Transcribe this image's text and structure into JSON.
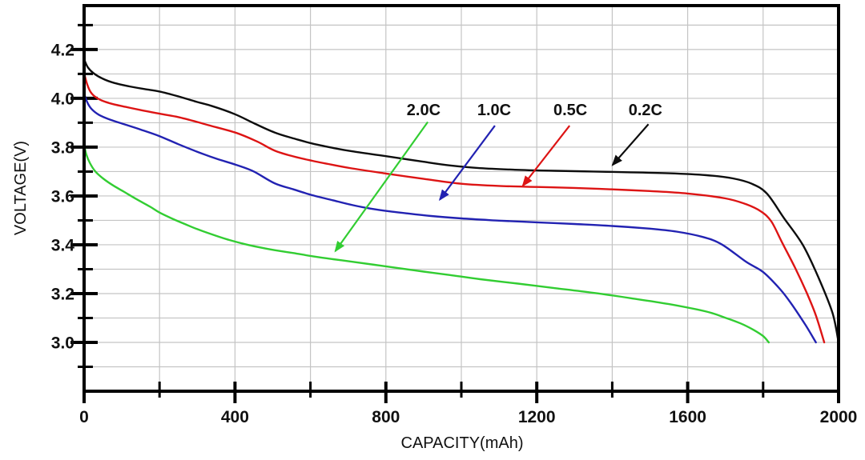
{
  "chart_data": {
    "type": "line",
    "title": "",
    "xlabel": "CAPACITY(mAh)",
    "ylabel": "VOLTAGE(V)",
    "xlim": [
      0,
      2000
    ],
    "ylim": [
      2.8,
      4.38
    ],
    "grid": {
      "on": true,
      "x_step": 200,
      "color": "#c4c4c4"
    },
    "frame_color": "#000000",
    "background": "#ffffff",
    "legend_position": "none",
    "x_major_ticks": [
      0,
      400,
      800,
      1200,
      1600,
      2000
    ],
    "x_major_labels": [
      "0",
      "400",
      "800",
      "1200",
      "1600",
      "2000"
    ],
    "x_minor_ticks": [
      200,
      600,
      1000,
      1400,
      1800
    ],
    "y_major_ticks": [
      4.2,
      4.0,
      3.8,
      3.6,
      3.4,
      3.2,
      3.0
    ],
    "y_major_labels": [
      "4.2",
      "4.0",
      "3.8",
      "3.6",
      "3.4",
      "3.2",
      "3.0"
    ],
    "y_minor_ticks": [
      4.3,
      4.1,
      3.9,
      3.7,
      3.5,
      3.3,
      3.1,
      2.9
    ],
    "series": [
      {
        "name": "0.2C",
        "color": "#0d0d0d",
        "points": [
          [
            0,
            4.16
          ],
          [
            10,
            4.127
          ],
          [
            25,
            4.103
          ],
          [
            50,
            4.08
          ],
          [
            80,
            4.063
          ],
          [
            120,
            4.049
          ],
          [
            160,
            4.038
          ],
          [
            200,
            4.028
          ],
          [
            250,
            4.008
          ],
          [
            300,
            3.985
          ],
          [
            340,
            3.968
          ],
          [
            400,
            3.935
          ],
          [
            450,
            3.898
          ],
          [
            505,
            3.86
          ],
          [
            555,
            3.836
          ],
          [
            605,
            3.815
          ],
          [
            660,
            3.797
          ],
          [
            710,
            3.783
          ],
          [
            800,
            3.763
          ],
          [
            900,
            3.74
          ],
          [
            970,
            3.725
          ],
          [
            1050,
            3.714
          ],
          [
            1150,
            3.707
          ],
          [
            1250,
            3.703
          ],
          [
            1350,
            3.7
          ],
          [
            1450,
            3.697
          ],
          [
            1550,
            3.693
          ],
          [
            1650,
            3.685
          ],
          [
            1720,
            3.672
          ],
          [
            1770,
            3.65
          ],
          [
            1810,
            3.61
          ],
          [
            1855,
            3.51
          ],
          [
            1905,
            3.4
          ],
          [
            1947,
            3.265
          ],
          [
            1984,
            3.12
          ],
          [
            2000,
            3.0
          ]
        ]
      },
      {
        "name": "0.5C",
        "color": "#dd1414",
        "points": [
          [
            0,
            4.105
          ],
          [
            8,
            4.058
          ],
          [
            20,
            4.02
          ],
          [
            40,
            3.996
          ],
          [
            70,
            3.979
          ],
          [
            110,
            3.965
          ],
          [
            150,
            3.952
          ],
          [
            200,
            3.937
          ],
          [
            250,
            3.923
          ],
          [
            300,
            3.903
          ],
          [
            330,
            3.89
          ],
          [
            404,
            3.858
          ],
          [
            460,
            3.822
          ],
          [
            505,
            3.786
          ],
          [
            555,
            3.762
          ],
          [
            605,
            3.744
          ],
          [
            660,
            3.727
          ],
          [
            710,
            3.713
          ],
          [
            800,
            3.692
          ],
          [
            900,
            3.67
          ],
          [
            1000,
            3.65
          ],
          [
            1100,
            3.641
          ],
          [
            1200,
            3.637
          ],
          [
            1300,
            3.633
          ],
          [
            1400,
            3.627
          ],
          [
            1500,
            3.62
          ],
          [
            1600,
            3.61
          ],
          [
            1700,
            3.59
          ],
          [
            1755,
            3.566
          ],
          [
            1795,
            3.536
          ],
          [
            1822,
            3.495
          ],
          [
            1850,
            3.41
          ],
          [
            1885,
            3.305
          ],
          [
            1915,
            3.205
          ],
          [
            1940,
            3.11
          ],
          [
            1962,
            3.0
          ]
        ]
      },
      {
        "name": "1.0C",
        "color": "#2222b2",
        "points": [
          [
            0,
            4.02
          ],
          [
            8,
            3.985
          ],
          [
            20,
            3.956
          ],
          [
            40,
            3.932
          ],
          [
            70,
            3.912
          ],
          [
            110,
            3.892
          ],
          [
            150,
            3.872
          ],
          [
            200,
            3.845
          ],
          [
            250,
            3.812
          ],
          [
            300,
            3.781
          ],
          [
            350,
            3.753
          ],
          [
            404,
            3.727
          ],
          [
            450,
            3.7
          ],
          [
            505,
            3.652
          ],
          [
            555,
            3.627
          ],
          [
            605,
            3.603
          ],
          [
            660,
            3.582
          ],
          [
            713,
            3.562
          ],
          [
            760,
            3.548
          ],
          [
            810,
            3.537
          ],
          [
            860,
            3.528
          ],
          [
            920,
            3.518
          ],
          [
            1000,
            3.508
          ],
          [
            1100,
            3.499
          ],
          [
            1200,
            3.492
          ],
          [
            1300,
            3.485
          ],
          [
            1400,
            3.477
          ],
          [
            1500,
            3.466
          ],
          [
            1570,
            3.454
          ],
          [
            1640,
            3.432
          ],
          [
            1690,
            3.402
          ],
          [
            1755,
            3.33
          ],
          [
            1800,
            3.288
          ],
          [
            1845,
            3.218
          ],
          [
            1875,
            3.158
          ],
          [
            1912,
            3.072
          ],
          [
            1940,
            3.0
          ]
        ]
      },
      {
        "name": "2.0C",
        "color": "#32cd32",
        "points": [
          [
            0,
            3.81
          ],
          [
            6,
            3.77
          ],
          [
            15,
            3.736
          ],
          [
            30,
            3.7
          ],
          [
            50,
            3.672
          ],
          [
            75,
            3.645
          ],
          [
            105,
            3.618
          ],
          [
            140,
            3.586
          ],
          [
            175,
            3.556
          ],
          [
            200,
            3.532
          ],
          [
            235,
            3.506
          ],
          [
            270,
            3.483
          ],
          [
            300,
            3.464
          ],
          [
            340,
            3.442
          ],
          [
            380,
            3.422
          ],
          [
            420,
            3.405
          ],
          [
            460,
            3.391
          ],
          [
            505,
            3.378
          ],
          [
            555,
            3.366
          ],
          [
            605,
            3.353
          ],
          [
            660,
            3.341
          ],
          [
            713,
            3.33
          ],
          [
            770,
            3.318
          ],
          [
            830,
            3.305
          ],
          [
            900,
            3.29
          ],
          [
            970,
            3.276
          ],
          [
            1050,
            3.259
          ],
          [
            1150,
            3.241
          ],
          [
            1250,
            3.222
          ],
          [
            1350,
            3.203
          ],
          [
            1450,
            3.181
          ],
          [
            1550,
            3.157
          ],
          [
            1650,
            3.126
          ],
          [
            1700,
            3.101
          ],
          [
            1740,
            3.078
          ],
          [
            1775,
            3.051
          ],
          [
            1800,
            3.026
          ],
          [
            1815,
            3.0
          ]
        ]
      }
    ],
    "annotations": [
      {
        "label": "2.0C",
        "color": "#32cd32",
        "label_at": [
          900,
          3.956
        ],
        "arrow_from": [
          911,
          3.903
        ],
        "arrow_to": [
          666,
          3.374
        ]
      },
      {
        "label": "1.0C",
        "color": "#2222b2",
        "label_at": [
          1087,
          3.956
        ],
        "arrow_from": [
          1089,
          3.888
        ],
        "arrow_to": [
          943,
          3.585
        ]
      },
      {
        "label": "0.5C",
        "color": "#dd1414",
        "label_at": [
          1289,
          3.956
        ],
        "arrow_from": [
          1287,
          3.888
        ],
        "arrow_to": [
          1163,
          3.642
        ]
      },
      {
        "label": "0.2C",
        "color": "#0d0d0d",
        "label_at": [
          1488,
          3.956
        ],
        "arrow_from": [
          1496,
          3.894
        ],
        "arrow_to": [
          1401,
          3.727
        ]
      }
    ]
  }
}
